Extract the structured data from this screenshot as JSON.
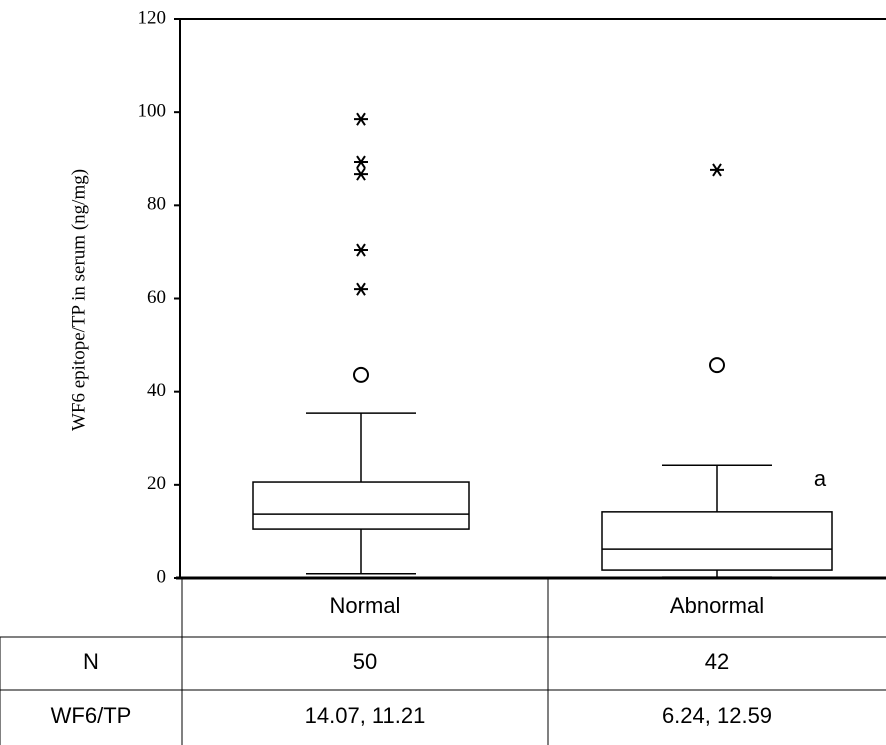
{
  "chart_data": {
    "type": "box",
    "y_label": "WF6 epitope/TP in serum (ng/mg)",
    "categories": [
      "Normal",
      "Abnormal"
    ],
    "boxes": [
      {
        "whisker_low": 0.9,
        "q1": 10.5,
        "median": 13.7,
        "q3": 20.6,
        "whisker_high": 35.4,
        "outliers": [
          43.6
        ],
        "extremes": [
          98.5,
          89.3,
          86.7,
          70.4,
          62
        ]
      },
      {
        "whisker_low": 0.2,
        "q1": 1.7,
        "median": 6.2,
        "q3": 14.2,
        "whisker_high": 24.2,
        "outliers": [
          45.7
        ],
        "extremes": [
          87.6
        ]
      }
    ],
    "annotation": "a",
    "ylim": [
      0,
      120
    ],
    "yticks": [
      0,
      20,
      40,
      60,
      80,
      100,
      120
    ]
  },
  "table": {
    "rows": [
      [
        "N",
        "50",
        "42"
      ],
      [
        "WF6/TP",
        "14.07, 11.21",
        "6.24, 12.59"
      ]
    ]
  }
}
